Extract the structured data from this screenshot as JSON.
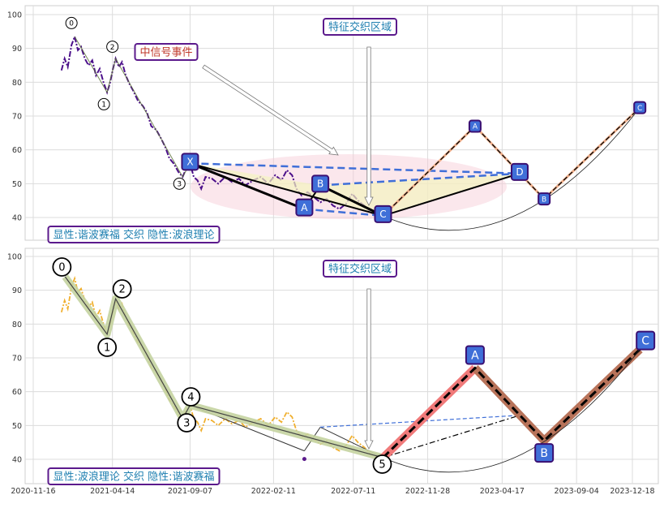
{
  "chart_data": [
    {
      "type": "line",
      "panel": "top",
      "y_ticks": [
        40,
        50,
        60,
        70,
        80,
        90,
        100
      ],
      "ylim": [
        33,
        103
      ],
      "grid": true,
      "annotations": {
        "region_label": "特征交织区域",
        "event_label": "中信号事件",
        "footer_label": "显性:谐波赛福 交织 隐性:波浪理论"
      },
      "price_series": [
        [
          "2021-01-08",
          83.5
        ],
        [
          "2021-01-14",
          87.0
        ],
        [
          "2021-01-20",
          84.5
        ],
        [
          "2021-01-27",
          91.0
        ],
        [
          "2021-02-02",
          93.5
        ],
        [
          "2021-02-08",
          89.5
        ],
        [
          "2021-02-14",
          90.5
        ],
        [
          "2021-02-21",
          87.0
        ],
        [
          "2021-02-28",
          85.0
        ],
        [
          "2021-03-07",
          86.5
        ],
        [
          "2021-03-14",
          82.0
        ],
        [
          "2021-03-21",
          84.0
        ],
        [
          "2021-03-28",
          80.0
        ],
        [
          "2021-04-04",
          77.0
        ],
        [
          "2021-04-09",
          79.5
        ],
        [
          "2021-04-15",
          84.0
        ],
        [
          "2021-04-20",
          87.0
        ],
        [
          "2021-04-26",
          84.5
        ],
        [
          "2021-05-02",
          86.0
        ],
        [
          "2021-05-09",
          82.0
        ],
        [
          "2021-05-16",
          79.5
        ],
        [
          "2021-05-23",
          77.5
        ],
        [
          "2021-06-01",
          74.5
        ],
        [
          "2021-06-10",
          73.0
        ],
        [
          "2021-06-18",
          71.0
        ],
        [
          "2021-06-26",
          67.0
        ],
        [
          "2021-07-05",
          66.0
        ],
        [
          "2021-07-14",
          63.5
        ],
        [
          "2021-07-22",
          61.0
        ],
        [
          "2021-07-30",
          57.5
        ],
        [
          "2021-08-07",
          56.0
        ],
        [
          "2021-08-16",
          53.5
        ],
        [
          "2021-08-24",
          52.0
        ],
        [
          "2021-09-01",
          55.0
        ],
        [
          "2021-09-07",
          56.0
        ],
        [
          "2021-09-14",
          52.0
        ],
        [
          "2021-09-21",
          51.0
        ],
        [
          "2021-09-28",
          48.5
        ],
        [
          "2021-10-06",
          52.0
        ],
        [
          "2021-10-18",
          51.5
        ],
        [
          "2021-10-30",
          50.0
        ],
        [
          "2021-11-12",
          52.0
        ],
        [
          "2021-11-25",
          50.5
        ],
        [
          "2021-12-08",
          51.5
        ],
        [
          "2021-12-20",
          49.5
        ],
        [
          "2022-01-04",
          51.0
        ],
        [
          "2022-01-18",
          52.0
        ],
        [
          "2022-02-01",
          50.0
        ],
        [
          "2022-02-14",
          52.5
        ],
        [
          "2022-02-26",
          51.0
        ],
        [
          "2022-03-08",
          54.0
        ],
        [
          "2022-03-18",
          52.5
        ],
        [
          "2022-03-26",
          48.5
        ],
        [
          "2022-04-05",
          46.5
        ],
        [
          "2022-04-16",
          47.5
        ],
        [
          "2022-04-28",
          46.0
        ],
        [
          "2022-05-10",
          44.5
        ],
        [
          "2022-05-22",
          45.5
        ],
        [
          "2022-06-03",
          43.5
        ],
        [
          "2022-06-15",
          42.5
        ],
        [
          "2022-06-27",
          44.0
        ],
        [
          "2022-07-09",
          47.0
        ],
        [
          "2022-07-20",
          45.0
        ],
        [
          "2022-08-01",
          43.5
        ],
        [
          "2022-08-13",
          41.5
        ],
        [
          "2022-08-25",
          40.5
        ],
        [
          "2022-09-05",
          41.0
        ]
      ],
      "harmonic_points": [
        {
          "label": "X",
          "x": "2021-09-07",
          "y": 56.0
        },
        {
          "label": "A",
          "x": "2022-04-10",
          "y": 42.5
        },
        {
          "label": "B",
          "x": "2022-05-10",
          "y": 49.5
        },
        {
          "label": "C",
          "x": "2022-09-05",
          "y": 40.5
        },
        {
          "label": "D",
          "x": "2023-05-20",
          "y": 53.0
        }
      ],
      "projection_points": [
        {
          "label": "C",
          "x": "2022-09-05",
          "y": 40.5
        },
        {
          "label": "A",
          "x": "2023-02-25",
          "y": 67.0
        },
        {
          "label": "B",
          "x": "2023-07-05",
          "y": 45.5
        },
        {
          "label": "C",
          "x": "2024-01-01",
          "y": 72.5
        }
      ],
      "wave_labels": [
        {
          "label": "0",
          "x": "2021-02-02",
          "y": 97.5
        },
        {
          "label": "1",
          "x": "2021-04-04",
          "y": 73.5
        },
        {
          "label": "2",
          "x": "2021-04-20",
          "y": 90.5
        },
        {
          "label": "3",
          "x": "2021-08-24",
          "y": 50.0
        }
      ]
    },
    {
      "type": "line",
      "panel": "bottom",
      "x_ticks": [
        "2020-11-16",
        "2021-04-14",
        "2021-09-07",
        "2022-02-11",
        "2022-07-11",
        "2022-11-28",
        "2023-04-17",
        "2023-09-04",
        "2023-12-18"
      ],
      "y_ticks": [
        40,
        50,
        60,
        70,
        80,
        90,
        100
      ],
      "ylim": [
        33,
        103
      ],
      "grid": true,
      "annotations": {
        "region_label": "特征交织区域",
        "footer_label": "显性:波浪理论 交织 隐性:谐波赛福"
      },
      "price_series": [
        [
          "2021-01-08",
          83.5
        ],
        [
          "2021-01-14",
          87.0
        ],
        [
          "2021-01-20",
          84.5
        ],
        [
          "2021-01-27",
          91.0
        ],
        [
          "2021-02-02",
          93.5
        ],
        [
          "2021-02-08",
          89.5
        ],
        [
          "2021-02-14",
          90.5
        ],
        [
          "2021-02-21",
          87.0
        ],
        [
          "2021-02-28",
          85.0
        ],
        [
          "2021-03-07",
          86.5
        ],
        [
          "2021-03-14",
          82.0
        ],
        [
          "2021-03-21",
          84.0
        ],
        [
          "2021-03-28",
          80.0
        ],
        [
          "2021-04-04",
          77.0
        ],
        [
          "2021-04-09",
          79.5
        ],
        [
          "2021-04-15",
          84.0
        ],
        [
          "2021-04-20",
          87.0
        ],
        [
          "2021-04-26",
          84.5
        ],
        [
          "2021-05-02",
          86.0
        ],
        [
          "2021-05-09",
          82.0
        ],
        [
          "2021-05-16",
          79.5
        ],
        [
          "2021-05-23",
          77.5
        ],
        [
          "2021-06-01",
          74.5
        ],
        [
          "2021-06-10",
          73.0
        ],
        [
          "2021-06-18",
          71.0
        ],
        [
          "2021-06-26",
          67.0
        ],
        [
          "2021-07-05",
          66.0
        ],
        [
          "2021-07-14",
          63.5
        ],
        [
          "2021-07-22",
          61.0
        ],
        [
          "2021-07-30",
          57.5
        ],
        [
          "2021-08-07",
          56.0
        ],
        [
          "2021-08-16",
          53.5
        ],
        [
          "2021-08-24",
          52.0
        ],
        [
          "2021-09-01",
          55.0
        ],
        [
          "2021-09-07",
          56.0
        ],
        [
          "2021-09-14",
          52.0
        ],
        [
          "2021-09-21",
          51.0
        ],
        [
          "2021-09-28",
          48.5
        ],
        [
          "2021-10-06",
          52.0
        ],
        [
          "2021-10-18",
          51.5
        ],
        [
          "2021-10-30",
          50.0
        ],
        [
          "2021-11-12",
          52.0
        ],
        [
          "2021-11-25",
          50.5
        ],
        [
          "2021-12-08",
          51.5
        ],
        [
          "2021-12-20",
          49.5
        ],
        [
          "2022-01-04",
          51.0
        ],
        [
          "2022-01-18",
          52.0
        ],
        [
          "2022-02-01",
          50.0
        ],
        [
          "2022-02-14",
          52.5
        ],
        [
          "2022-02-26",
          51.0
        ],
        [
          "2022-03-08",
          54.0
        ],
        [
          "2022-03-18",
          52.5
        ],
        [
          "2022-03-26",
          48.5
        ],
        [
          "2022-04-05",
          46.5
        ],
        [
          "2022-04-16",
          47.5
        ],
        [
          "2022-04-28",
          46.0
        ],
        [
          "2022-05-10",
          44.5
        ],
        [
          "2022-05-22",
          45.5
        ],
        [
          "2022-06-03",
          43.5
        ],
        [
          "2022-06-15",
          42.5
        ],
        [
          "2022-06-27",
          44.0
        ],
        [
          "2022-07-09",
          47.0
        ],
        [
          "2022-07-20",
          45.0
        ],
        [
          "2022-08-01",
          43.5
        ],
        [
          "2022-08-13",
          41.5
        ],
        [
          "2022-08-25",
          40.5
        ],
        [
          "2022-09-05",
          41.0
        ]
      ],
      "wave_points": [
        {
          "label": "0",
          "x": "2021-01-15",
          "y": 94.0
        },
        {
          "label": "1",
          "x": "2021-04-04",
          "y": 77.0
        },
        {
          "label": "2",
          "x": "2021-04-20",
          "y": 87.5
        },
        {
          "label": "3",
          "x": "2021-08-24",
          "y": 52.0
        },
        {
          "label": "4",
          "x": "2021-09-07",
          "y": 56.0
        },
        {
          "label": "5",
          "x": "2022-09-05",
          "y": 40.5
        }
      ],
      "projection_points": [
        {
          "label": "5",
          "x": "2022-09-05",
          "y": 40.5
        },
        {
          "label": "A",
          "x": "2023-02-25",
          "y": 67.0
        },
        {
          "label": "B",
          "x": "2023-07-05",
          "y": 45.5
        },
        {
          "label": "C",
          "x": "2024-01-01",
          "y": 72.5
        }
      ]
    }
  ]
}
